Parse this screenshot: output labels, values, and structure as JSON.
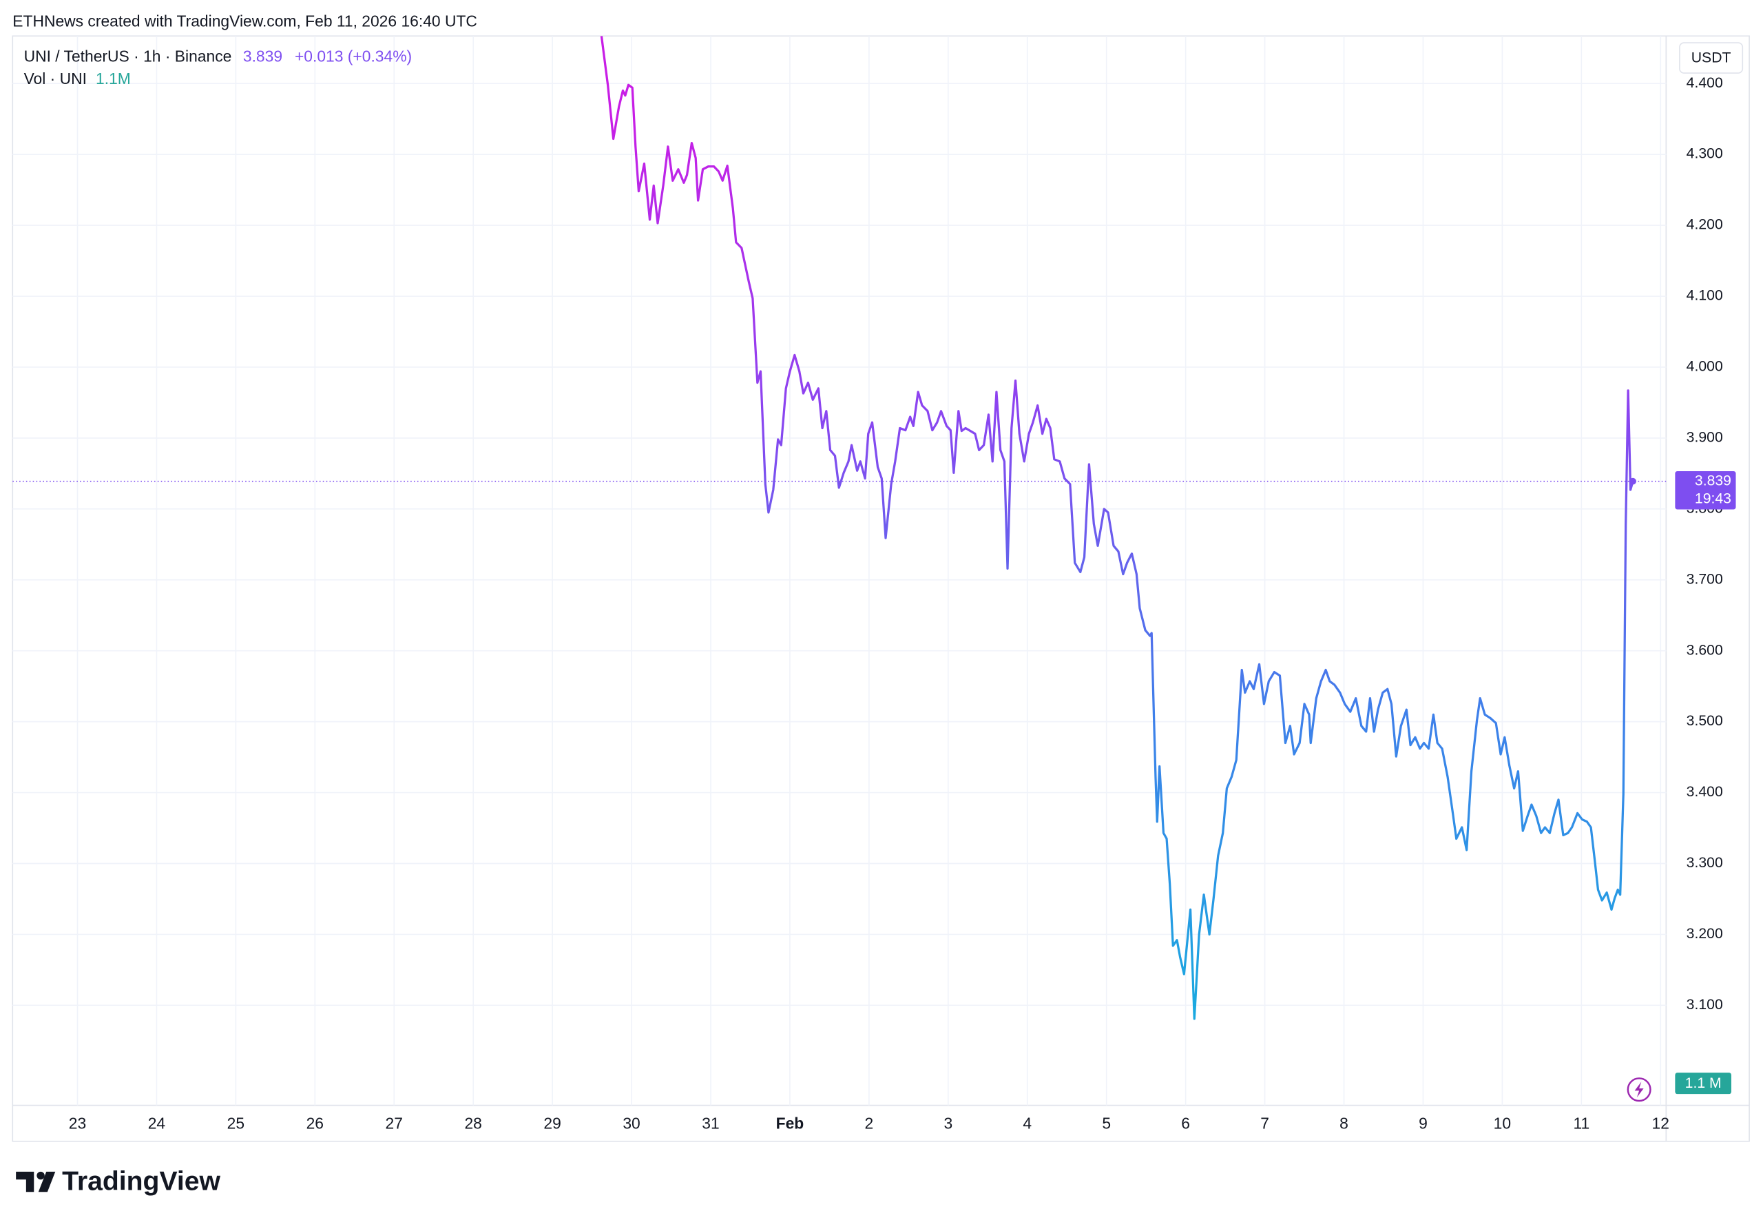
{
  "chart_data": {
    "type": "line",
    "header": "ETHNews created with TradingView.com, Feb 11, 2026 16:40 UTC",
    "symbol": "UNI / TetherUS · 1h · Binance",
    "last_price": 3.839,
    "change": "+0.013 (+0.34%)",
    "volume_title": "Vol · UNI",
    "volume": "1.1M",
    "volume_axis_label": "1.1 M",
    "countdown": "19:43",
    "currency": "USDT",
    "brand": "TradingView",
    "grid": true,
    "line_gradient": [
      "#c81ee6",
      "#8a45f0",
      "#3f7fea",
      "#1aa8e0"
    ],
    "price_color": "#7e4ef0",
    "volume_color": "#26a69a",
    "xlim": [
      22.18,
      43.07
    ],
    "xticks": [
      23,
      24,
      25,
      26,
      27,
      28,
      29,
      30,
      31,
      {
        "value": 32,
        "label": "Feb"
      },
      {
        "value": 33,
        "label": "2"
      },
      {
        "value": 34,
        "label": "3"
      },
      {
        "value": 35,
        "label": "4"
      },
      {
        "value": 36,
        "label": "5"
      },
      {
        "value": 37,
        "label": "6"
      },
      {
        "value": 38,
        "label": "7"
      },
      {
        "value": 39,
        "label": "8"
      },
      {
        "value": 40,
        "label": "9"
      },
      {
        "value": 41,
        "label": "10"
      },
      {
        "value": 42,
        "label": "11"
      },
      {
        "value": 43,
        "label": "12"
      }
    ],
    "ylim": [
      2.959,
      4.467
    ],
    "yticks": [
      {
        "value": 3.1,
        "label": "3.100"
      },
      {
        "value": 3.2,
        "label": "3.200"
      },
      {
        "value": 3.3,
        "label": "3.300"
      },
      {
        "value": 3.4,
        "label": "3.400"
      },
      {
        "value": 3.5,
        "label": "3.500"
      },
      {
        "value": 3.6,
        "label": "3.600"
      },
      {
        "value": 3.7,
        "label": "3.700"
      },
      {
        "value": 3.8,
        "label": "3.800"
      },
      {
        "value": 3.9,
        "label": "3.900"
      },
      {
        "value": 4.0,
        "label": "4.000"
      },
      {
        "value": 4.1,
        "label": "4.100"
      },
      {
        "value": 4.2,
        "label": "4.200"
      },
      {
        "value": 4.3,
        "label": "4.300"
      },
      {
        "value": 4.4,
        "label": "4.400"
      }
    ],
    "x": [
      29.62,
      29.7,
      29.77,
      29.84,
      29.89,
      29.92,
      29.96,
      30.01,
      30.05,
      30.09,
      30.16,
      30.23,
      30.28,
      30.33,
      30.4,
      30.46,
      30.52,
      30.59,
      30.66,
      30.7,
      30.76,
      30.81,
      30.84,
      30.9,
      30.97,
      31.04,
      31.1,
      31.15,
      31.21,
      31.28,
      31.32,
      31.39,
      31.48,
      31.53,
      31.59,
      31.63,
      31.69,
      31.73,
      31.79,
      31.85,
      31.89,
      31.95,
      32.0,
      32.06,
      32.12,
      32.17,
      32.23,
      32.29,
      32.36,
      32.41,
      32.46,
      32.51,
      32.57,
      32.62,
      32.68,
      32.74,
      32.78,
      32.85,
      32.89,
      32.95,
      32.99,
      33.04,
      33.11,
      33.16,
      33.21,
      33.28,
      33.33,
      33.39,
      33.46,
      33.52,
      33.56,
      33.62,
      33.67,
      33.74,
      33.8,
      33.86,
      33.91,
      33.98,
      34.03,
      34.07,
      34.13,
      34.17,
      34.22,
      34.28,
      34.34,
      34.39,
      34.45,
      34.51,
      34.56,
      34.61,
      34.66,
      34.71,
      34.75,
      34.8,
      34.85,
      34.9,
      34.96,
      35.02,
      35.07,
      35.13,
      35.19,
      35.24,
      35.29,
      35.34,
      35.41,
      35.47,
      35.54,
      35.6,
      35.67,
      35.72,
      35.78,
      35.84,
      35.89,
      35.97,
      36.02,
      36.09,
      36.15,
      36.21,
      36.26,
      36.32,
      36.38,
      36.42,
      36.49,
      36.55,
      36.57,
      36.62,
      36.64,
      36.67,
      36.72,
      36.76,
      36.8,
      36.84,
      36.89,
      36.93,
      36.98,
      37.06,
      37.11,
      37.17,
      37.23,
      37.3,
      37.35,
      37.41,
      37.47,
      37.52,
      37.58,
      37.64,
      37.71,
      37.75,
      37.81,
      37.86,
      37.93,
      37.99,
      38.05,
      38.12,
      38.19,
      38.26,
      38.32,
      38.37,
      38.44,
      38.5,
      38.56,
      38.58,
      38.65,
      38.71,
      38.77,
      38.82,
      38.88,
      38.95,
      39.01,
      39.08,
      39.15,
      39.22,
      39.28,
      39.33,
      39.38,
      39.43,
      39.49,
      39.55,
      39.6,
      39.66,
      39.72,
      39.79,
      39.84,
      39.9,
      39.96,
      40.01,
      40.07,
      40.13,
      40.18,
      40.24,
      40.31,
      40.37,
      40.42,
      40.49,
      40.55,
      40.61,
      40.68,
      40.72,
      40.78,
      40.85,
      40.92,
      40.98,
      41.03,
      41.09,
      41.15,
      41.2,
      41.26,
      41.32,
      41.37,
      41.43,
      41.49,
      41.54,
      41.6,
      41.66,
      41.71,
      41.77,
      41.83,
      41.88,
      41.95,
      42.01,
      42.07,
      42.12,
      42.17,
      42.21,
      42.26,
      42.32,
      42.38,
      42.42,
      42.46,
      42.49,
      42.53,
      42.56,
      42.59,
      42.62,
      42.65
    ],
    "values": [
      4.467,
      4.398,
      4.322,
      4.367,
      4.39,
      4.383,
      4.398,
      4.394,
      4.311,
      4.248,
      4.287,
      4.208,
      4.256,
      4.203,
      4.256,
      4.311,
      4.263,
      4.279,
      4.26,
      4.271,
      4.316,
      4.295,
      4.235,
      4.279,
      4.283,
      4.283,
      4.276,
      4.263,
      4.284,
      4.224,
      4.176,
      4.168,
      4.121,
      4.097,
      3.978,
      3.994,
      3.835,
      3.795,
      3.827,
      3.898,
      3.89,
      3.97,
      3.994,
      4.017,
      3.994,
      3.963,
      3.978,
      3.954,
      3.97,
      3.914,
      3.938,
      3.883,
      3.875,
      3.83,
      3.851,
      3.867,
      3.89,
      3.854,
      3.867,
      3.843,
      3.906,
      3.922,
      3.859,
      3.843,
      3.759,
      3.835,
      3.867,
      3.914,
      3.911,
      3.93,
      3.917,
      3.965,
      3.946,
      3.938,
      3.911,
      3.922,
      3.938,
      3.917,
      3.911,
      3.851,
      3.938,
      3.91,
      3.914,
      3.91,
      3.906,
      3.883,
      3.89,
      3.933,
      3.867,
      3.965,
      3.883,
      3.867,
      3.716,
      3.914,
      3.981,
      3.906,
      3.867,
      3.906,
      3.922,
      3.946,
      3.906,
      3.927,
      3.914,
      3.87,
      3.867,
      3.843,
      3.835,
      3.724,
      3.711,
      3.732,
      3.863,
      3.779,
      3.748,
      3.8,
      3.795,
      3.748,
      3.74,
      3.708,
      3.724,
      3.737,
      3.708,
      3.66,
      3.629,
      3.621,
      3.625,
      3.422,
      3.359,
      3.437,
      3.343,
      3.335,
      3.271,
      3.184,
      3.192,
      3.168,
      3.144,
      3.235,
      3.081,
      3.2,
      3.256,
      3.2,
      3.248,
      3.311,
      3.343,
      3.406,
      3.422,
      3.446,
      3.573,
      3.541,
      3.557,
      3.546,
      3.581,
      3.525,
      3.557,
      3.57,
      3.565,
      3.47,
      3.494,
      3.454,
      3.47,
      3.525,
      3.51,
      3.47,
      3.533,
      3.557,
      3.573,
      3.557,
      3.552,
      3.541,
      3.525,
      3.514,
      3.533,
      3.494,
      3.486,
      3.533,
      3.486,
      3.517,
      3.541,
      3.546,
      3.525,
      3.451,
      3.494,
      3.517,
      3.467,
      3.478,
      3.462,
      3.47,
      3.462,
      3.51,
      3.47,
      3.462,
      3.422,
      3.375,
      3.335,
      3.351,
      3.319,
      3.43,
      3.502,
      3.533,
      3.51,
      3.505,
      3.498,
      3.454,
      3.478,
      3.438,
      3.406,
      3.43,
      3.346,
      3.367,
      3.383,
      3.367,
      3.343,
      3.351,
      3.343,
      3.371,
      3.39,
      3.34,
      3.343,
      3.351,
      3.371,
      3.362,
      3.359,
      3.351,
      3.303,
      3.263,
      3.248,
      3.259,
      3.235,
      3.251,
      3.263,
      3.256,
      3.398,
      3.779,
      3.967,
      3.827,
      3.839
    ]
  }
}
